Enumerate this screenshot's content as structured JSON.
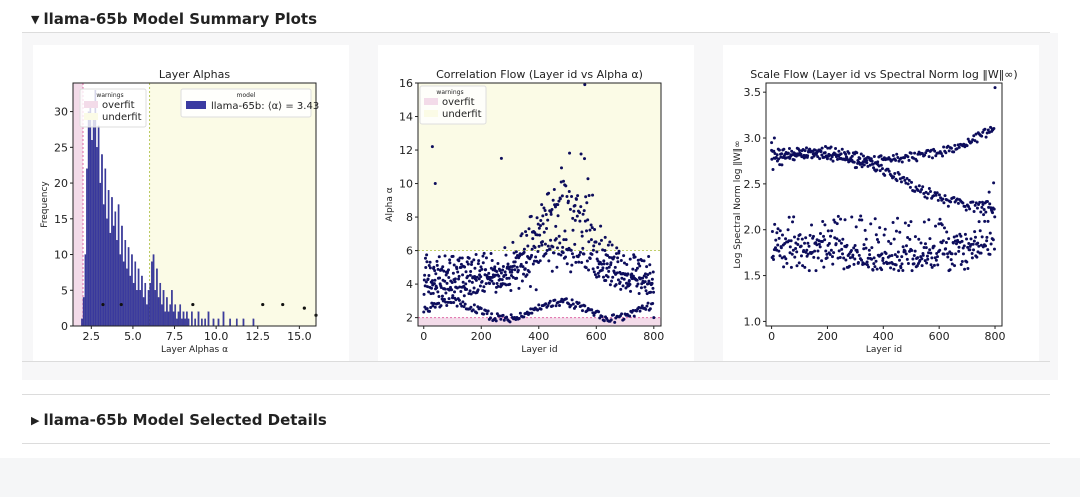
{
  "sections": {
    "summary_title": "llama-65b Model Summary Plots",
    "summary_arrow": "▼",
    "details_title": "llama-65b Model Selected Details",
    "details_arrow": "▶"
  },
  "colors": {
    "bar_fill": "#3b3ba1",
    "point": "#0d0d5c",
    "overfit_band": "#f3dbe9",
    "underfit_band": "#fbfbe6",
    "overfit_line": "#e06aa8",
    "underfit_line": "#b8c85a"
  },
  "chart_data": [
    {
      "type": "bar",
      "title": "Layer Alphas",
      "xlabel": "Layer Alphas α",
      "ylabel": "Frequency",
      "xlim": [
        1.4,
        16.0
      ],
      "ylim": [
        0,
        34
      ],
      "xticks": [
        "2.5",
        "5.0",
        "7.5",
        "10.0",
        "12.5",
        "15.0"
      ],
      "yticks": [
        "0",
        "5",
        "10",
        "15",
        "20",
        "25",
        "30"
      ],
      "regions": {
        "overfit_max": 2.0,
        "underfit_min": 6.0
      },
      "legend_warnings": {
        "title": "warnings",
        "items": [
          "overfit",
          "underfit"
        ]
      },
      "legend_model": {
        "title": "model",
        "label": "llama-65b: ⟨α⟩ = 3.43"
      },
      "bin_width": 0.1,
      "bins": [
        [
          1.9,
          1
        ],
        [
          2.0,
          4
        ],
        [
          2.1,
          10
        ],
        [
          2.2,
          22
        ],
        [
          2.3,
          30
        ],
        [
          2.4,
          31
        ],
        [
          2.5,
          26
        ],
        [
          2.6,
          29
        ],
        [
          2.7,
          33
        ],
        [
          2.8,
          25
        ],
        [
          2.9,
          28
        ],
        [
          3.0,
          20
        ],
        [
          3.1,
          24
        ],
        [
          3.2,
          17
        ],
        [
          3.3,
          22
        ],
        [
          3.4,
          15
        ],
        [
          3.5,
          19
        ],
        [
          3.6,
          13
        ],
        [
          3.7,
          18
        ],
        [
          3.8,
          14
        ],
        [
          3.9,
          16
        ],
        [
          4.0,
          12
        ],
        [
          4.1,
          17
        ],
        [
          4.2,
          10
        ],
        [
          4.3,
          14
        ],
        [
          4.4,
          9
        ],
        [
          4.5,
          12
        ],
        [
          4.6,
          8
        ],
        [
          4.7,
          11
        ],
        [
          4.8,
          7
        ],
        [
          4.9,
          10
        ],
        [
          5.0,
          6
        ],
        [
          5.1,
          9
        ],
        [
          5.2,
          5
        ],
        [
          5.3,
          8
        ],
        [
          5.4,
          5
        ],
        [
          5.5,
          7
        ],
        [
          5.6,
          4
        ],
        [
          5.7,
          6
        ],
        [
          5.8,
          3
        ],
        [
          5.9,
          5
        ],
        [
          6.0,
          6
        ],
        [
          6.1,
          9
        ],
        [
          6.2,
          10
        ],
        [
          6.3,
          5
        ],
        [
          6.4,
          8
        ],
        [
          6.5,
          4
        ],
        [
          6.6,
          6
        ],
        [
          6.7,
          3
        ],
        [
          6.8,
          5
        ],
        [
          6.9,
          2
        ],
        [
          7.0,
          4
        ],
        [
          7.1,
          2
        ],
        [
          7.2,
          3
        ],
        [
          7.3,
          5
        ],
        [
          7.4,
          2
        ],
        [
          7.5,
          3
        ],
        [
          7.6,
          1
        ],
        [
          7.7,
          2
        ],
        [
          7.8,
          3
        ],
        [
          7.9,
          1
        ],
        [
          8.0,
          2
        ],
        [
          8.1,
          1
        ],
        [
          8.2,
          2
        ],
        [
          8.3,
          1
        ],
        [
          8.5,
          2
        ],
        [
          8.7,
          1
        ],
        [
          8.9,
          2
        ],
        [
          9.1,
          1
        ],
        [
          9.3,
          1
        ],
        [
          9.5,
          2
        ],
        [
          9.8,
          1
        ],
        [
          10.1,
          1
        ],
        [
          10.4,
          2
        ],
        [
          10.8,
          1
        ],
        [
          11.2,
          1
        ],
        [
          11.6,
          1
        ],
        [
          12.2,
          1
        ]
      ],
      "stray_points": [
        [
          3.2,
          3
        ],
        [
          4.3,
          3
        ],
        [
          8.6,
          3
        ],
        [
          12.8,
          3
        ],
        [
          14.0,
          3
        ],
        [
          15.3,
          2.5
        ],
        [
          16.0,
          1.5
        ]
      ]
    },
    {
      "type": "scatter",
      "title": "Correlation Flow (Layer id vs Alpha α)",
      "xlabel": "Layer id",
      "ylabel": "Alpha α",
      "xlim": [
        -20,
        825
      ],
      "ylim": [
        1.5,
        16
      ],
      "xticks": [
        0,
        200,
        400,
        600,
        800
      ],
      "yticks": [
        2,
        4,
        6,
        8,
        10,
        12,
        14,
        16
      ],
      "regions": {
        "overfit_max": 2.0,
        "underfit_min": 6.0
      },
      "legend_warnings": {
        "title": "warnings",
        "items": [
          "overfit",
          "underfit"
        ]
      },
      "n_points": 800
    },
    {
      "type": "scatter",
      "title": "Scale Flow (Layer id vs Spectral Norm log ‖W‖∞)",
      "xlabel": "Layer id",
      "ylabel": "Log Spectral Norm log ‖W‖∞",
      "xlim": [
        -20,
        825
      ],
      "ylim": [
        0.95,
        3.6
      ],
      "xticks": [
        0,
        200,
        400,
        600,
        800
      ],
      "yticks": [
        "1.0",
        "1.5",
        "2.0",
        "2.5",
        "3.0",
        "3.5"
      ],
      "n_points": 800
    }
  ]
}
